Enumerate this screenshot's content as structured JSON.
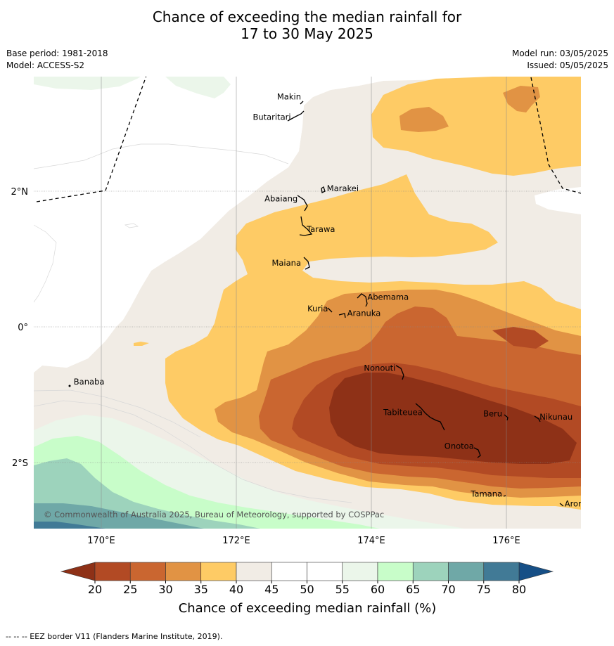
{
  "header": {
    "title_line1": "Chance of exceeding the median rainfall for",
    "title_line2": "17 to 30 May 2025",
    "base_period": "Base period: 1981-2018",
    "model": "Model: ACCESS-S2",
    "model_run": "Model run: 03/05/2025",
    "issued": "Issued: 05/05/2025"
  },
  "map": {
    "lon_ticks": [
      "170°E",
      "172°E",
      "174°E",
      "176°E"
    ],
    "lat_ticks": [
      "2°N",
      "0°",
      "2°S"
    ],
    "copyright": "© Commonwealth of Australia 2025, Bureau of Meteorology, supported by COSPPac",
    "islands": [
      {
        "name": "Makin",
        "lon": 173.0,
        "lat": 3.35
      },
      {
        "name": "Butaritari",
        "lon": 172.85,
        "lat": 3.05
      },
      {
        "name": "Marakei",
        "lon": 173.3,
        "lat": 2.0
      },
      {
        "name": "Abaiang",
        "lon": 172.95,
        "lat": 1.85
      },
      {
        "name": "Tarawa",
        "lon": 173.0,
        "lat": 1.4
      },
      {
        "name": "Maiana",
        "lon": 173.0,
        "lat": 0.9
      },
      {
        "name": "Abemama",
        "lon": 173.9,
        "lat": 0.4
      },
      {
        "name": "Kuria",
        "lon": 173.4,
        "lat": 0.23
      },
      {
        "name": "Aranuka",
        "lon": 173.6,
        "lat": 0.16
      },
      {
        "name": "Nonouti",
        "lon": 174.4,
        "lat": -0.65
      },
      {
        "name": "Banaba",
        "lon": 169.55,
        "lat": -0.85
      },
      {
        "name": "Tabiteuea",
        "lon": 174.8,
        "lat": -1.3
      },
      {
        "name": "Beru",
        "lon": 175.98,
        "lat": -1.32
      },
      {
        "name": "Nikunau",
        "lon": 176.45,
        "lat": -1.37
      },
      {
        "name": "Onotoa",
        "lon": 175.56,
        "lat": -1.8
      },
      {
        "name": "Tamana",
        "lon": 175.98,
        "lat": -2.5
      },
      {
        "name": "Arorae",
        "lon": 176.82,
        "lat": -2.65
      }
    ]
  },
  "colorbar": {
    "label": "Chance of exceeding median rainfall (%)",
    "ticks": [
      "20",
      "25",
      "30",
      "35",
      "40",
      "45",
      "50",
      "55",
      "60",
      "65",
      "70",
      "75",
      "80"
    ],
    "under_color": "#8e3117",
    "over_color": "#164f86",
    "colors": [
      "#b24a24",
      "#ca6630",
      "#e19344",
      "#fecb65",
      "#f1ece5",
      "#ffffff",
      "#ffffff",
      "#ebf6ea",
      "#c8fdc9",
      "#9dd3bc",
      "#6fa8a7",
      "#417a96"
    ]
  },
  "footer": {
    "legend": "--  --  -- EEZ border V11 (Flanders Marine Institute, 2019)."
  }
}
